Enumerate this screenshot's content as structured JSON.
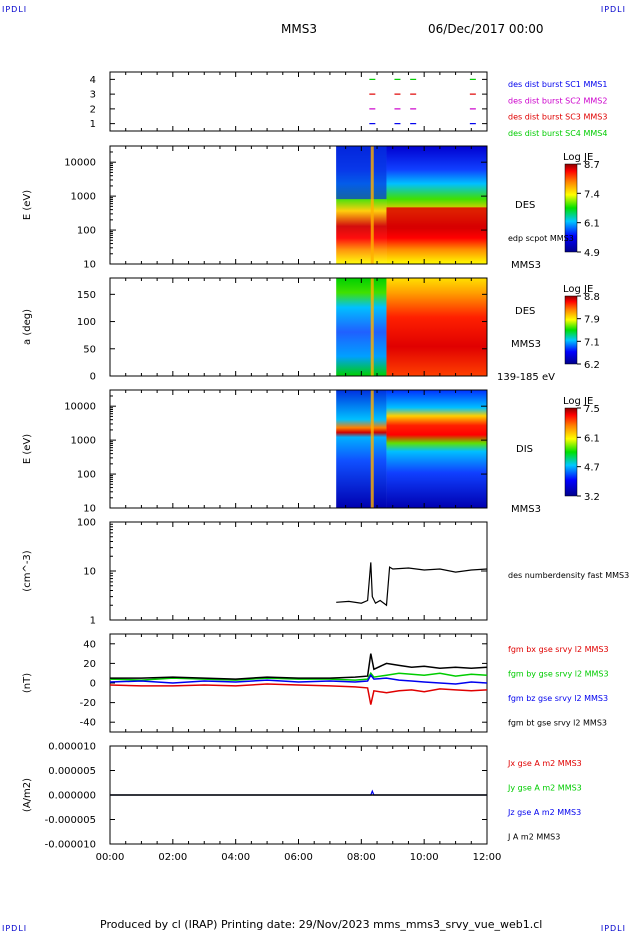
{
  "corner_labels": {
    "top_left": "IPDLI",
    "top_right": "IPDLI",
    "bottom_left": "IPDLI",
    "bottom_right": "IPDLI"
  },
  "header": {
    "spacecraft": "MMS3",
    "date": "06/Dec/2017 00:00"
  },
  "footer": {
    "text": "Produced by cl (IRAP)   Printing date: 29/Nov/2023   mms_mms3_srvy_vue_web1.cl"
  },
  "time_axis": {
    "ticks": [
      "00:00",
      "02:00",
      "04:00",
      "06:00",
      "08:00",
      "10:00",
      "12:00"
    ],
    "range_hours": [
      0,
      12
    ]
  },
  "colors": {
    "red": "#e00000",
    "green": "#00cc00",
    "blue": "#0000ee",
    "black": "#000000",
    "magenta": "#cc00cc"
  },
  "chart_data": [
    {
      "type": "scatter",
      "id": "burst",
      "ylabel": "",
      "yticks": [
        "1",
        "2",
        "3",
        "4"
      ],
      "ylim": [
        0.5,
        4.5
      ],
      "labels": [
        {
          "text": "des dist burst SC1 MMS1",
          "color": "#0000ee"
        },
        {
          "text": "des dist burst SC2 MMS2",
          "color": "#cc00cc"
        },
        {
          "text": "des dist burst SC3 MMS3",
          "color": "#e00000"
        },
        {
          "text": "des dist burst SC4 MMS4",
          "color": "#00cc00"
        }
      ],
      "marks_hours": [
        8.35,
        9.15,
        9.65,
        11.55
      ]
    },
    {
      "type": "heatmap",
      "id": "des-energy",
      "ylabel": "E (eV)",
      "yticks": [
        "10",
        "100",
        "1000",
        "10000"
      ],
      "ylim": [
        10,
        30000
      ],
      "data_start_hours": 7.2,
      "side_labels": [
        "DES",
        "edp scpot MMS3",
        "MMS3"
      ],
      "colorbar": {
        "title": "Log JE",
        "ticks": [
          "8.7",
          "7.4",
          "6.1",
          "4.9"
        ]
      }
    },
    {
      "type": "heatmap",
      "id": "des-pitch",
      "ylabel": "a (deg)",
      "yticks": [
        "0",
        "50",
        "100",
        "150"
      ],
      "ylim": [
        0,
        180
      ],
      "data_start_hours": 7.2,
      "side_labels": [
        "DES",
        "MMS3",
        "139-185 eV"
      ],
      "colorbar": {
        "title": "Log JE",
        "ticks": [
          "8.8",
          "7.9",
          "7.1",
          "6.2"
        ]
      }
    },
    {
      "type": "heatmap",
      "id": "dis-energy",
      "ylabel": "E (eV)",
      "yticks": [
        "10",
        "100",
        "1000",
        "10000"
      ],
      "ylim": [
        10,
        30000
      ],
      "data_start_hours": 7.2,
      "side_labels": [
        "DIS",
        "MMS3"
      ],
      "colorbar": {
        "title": "Log JE",
        "ticks": [
          "7.5",
          "6.1",
          "4.7",
          "3.2"
        ]
      }
    },
    {
      "type": "line",
      "id": "density",
      "ylabel": "(cm^-3)",
      "yticks": [
        "1",
        "10",
        "100"
      ],
      "ylim": [
        1,
        100
      ],
      "scale": "log",
      "series": [
        {
          "name": "des numberdensity fast MMS3",
          "color": "#000000",
          "x": [
            7.2,
            7.6,
            8.0,
            8.2,
            8.3,
            8.35,
            8.45,
            8.6,
            8.8,
            8.9,
            9.0,
            9.5,
            10.0,
            10.5,
            11.0,
            11.5,
            12.0
          ],
          "y": [
            2.3,
            2.4,
            2.2,
            2.5,
            15,
            3.0,
            2.2,
            2.5,
            2.0,
            12,
            11,
            11.5,
            10.5,
            11.0,
            9.5,
            10.5,
            11.0
          ]
        }
      ]
    },
    {
      "type": "line",
      "id": "fgm",
      "ylabel": "(nT)",
      "yticks": [
        "-40",
        "-20",
        "0",
        "20",
        "40"
      ],
      "ylim": [
        -50,
        50
      ],
      "series": [
        {
          "name": "fgm bx gse srvy l2 MMS3",
          "color": "#e00000",
          "x": [
            0,
            1,
            2,
            3,
            4,
            5,
            6,
            7,
            7.8,
            8.2,
            8.3,
            8.4,
            8.8,
            9.2,
            9.6,
            10.0,
            10.5,
            11.0,
            11.5,
            12.0
          ],
          "y": [
            -2,
            -3,
            -3,
            -2,
            -3,
            -1,
            -2,
            -3,
            -4,
            -5,
            -22,
            -8,
            -10,
            -8,
            -7,
            -9,
            -6,
            -7,
            -8,
            -7
          ]
        },
        {
          "name": "fgm by gse srvy l2 MMS3",
          "color": "#00cc00",
          "x": [
            0,
            1,
            2,
            3,
            4,
            5,
            6,
            7,
            7.8,
            8.2,
            8.3,
            8.4,
            8.8,
            9.2,
            9.6,
            10.0,
            10.5,
            11.0,
            11.5,
            12.0
          ],
          "y": [
            4,
            3,
            5,
            4,
            3,
            5,
            4,
            4,
            3,
            4,
            10,
            6,
            8,
            10,
            9,
            8,
            10,
            7,
            9,
            8
          ]
        },
        {
          "name": "fgm bz gse srvy l2 MMS3",
          "color": "#0000ee",
          "x": [
            0,
            1,
            2,
            3,
            4,
            5,
            6,
            7,
            7.8,
            8.2,
            8.3,
            8.4,
            8.8,
            9.2,
            9.6,
            10.0,
            10.5,
            11.0,
            11.5,
            12.0
          ],
          "y": [
            1,
            2,
            0,
            2,
            1,
            3,
            1,
            2,
            1,
            2,
            8,
            4,
            5,
            3,
            2,
            1,
            0,
            -1,
            1,
            0
          ]
        },
        {
          "name": "fgm bt gse srvy l2 MMS3",
          "color": "#000000",
          "x": [
            0,
            1,
            2,
            3,
            4,
            5,
            6,
            7,
            7.8,
            8.2,
            8.3,
            8.4,
            8.8,
            9.2,
            9.6,
            10.0,
            10.5,
            11.0,
            11.5,
            12.0
          ],
          "y": [
            5,
            5,
            6,
            5,
            4,
            6,
            5,
            5,
            6,
            7,
            30,
            14,
            20,
            18,
            16,
            17,
            15,
            16,
            15,
            16
          ]
        }
      ]
    },
    {
      "type": "line",
      "id": "current",
      "ylabel": "(A/m2)",
      "yticks": [
        "-0.000010",
        "-0.000005",
        "0.000000",
        "0.000005",
        "0.000010"
      ],
      "ylim": [
        -1e-05,
        1e-05
      ],
      "series": [
        {
          "name": "Jx gse A m2 MMS3",
          "color": "#e00000",
          "x": [
            0,
            12
          ],
          "y": [
            0,
            0
          ]
        },
        {
          "name": "Jy gse A m2 MMS3",
          "color": "#00cc00",
          "x": [
            0,
            12
          ],
          "y": [
            0,
            0
          ]
        },
        {
          "name": "Jz gse A m2 MMS3",
          "color": "#0000ee",
          "x": [
            0,
            8.3,
            8.35,
            8.4,
            12
          ],
          "y": [
            0,
            0,
            8e-07,
            0,
            0
          ]
        },
        {
          "name": "J A m2 MMS3",
          "color": "#000000",
          "x": [
            0,
            12
          ],
          "y": [
            0,
            0
          ]
        }
      ]
    }
  ]
}
